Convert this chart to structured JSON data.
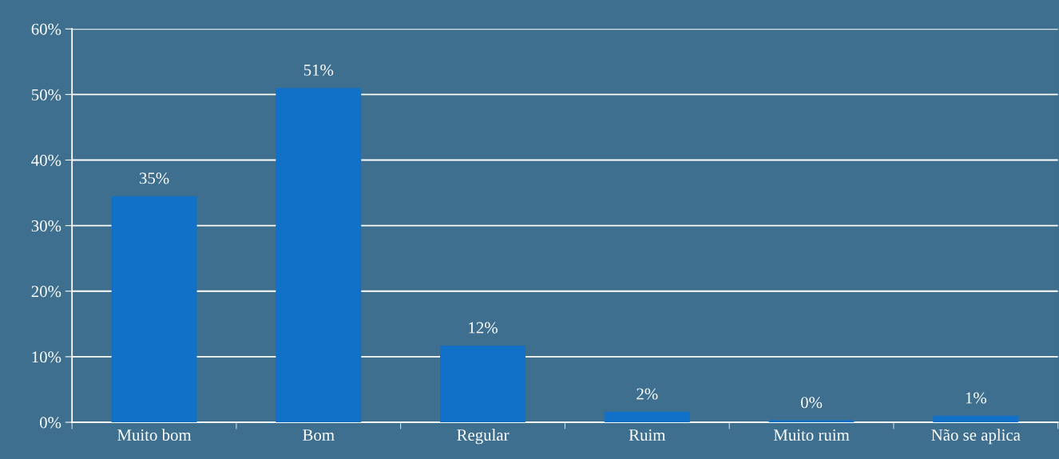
{
  "chart_data": {
    "type": "bar",
    "categories": [
      "Muito bom",
      "Bom",
      "Regular",
      "Ruim",
      "Muito ruim",
      "Não se aplica"
    ],
    "values": [
      34.5,
      51,
      11.7,
      1.6,
      0.3,
      1.0
    ],
    "value_labels": [
      "35%",
      "51%",
      "12%",
      "2%",
      "0%",
      "1%"
    ],
    "color": "#1170c8",
    "ylim": [
      0,
      60
    ],
    "yticks": [
      {
        "value": 0,
        "label": "0%"
      },
      {
        "value": 10,
        "label": "10%"
      },
      {
        "value": 20,
        "label": "20%"
      },
      {
        "value": 30,
        "label": "30%"
      },
      {
        "value": 40,
        "label": "40%"
      },
      {
        "value": 50,
        "label": "50%"
      },
      {
        "value": 60,
        "label": "60%"
      }
    ],
    "grid": "y"
  }
}
